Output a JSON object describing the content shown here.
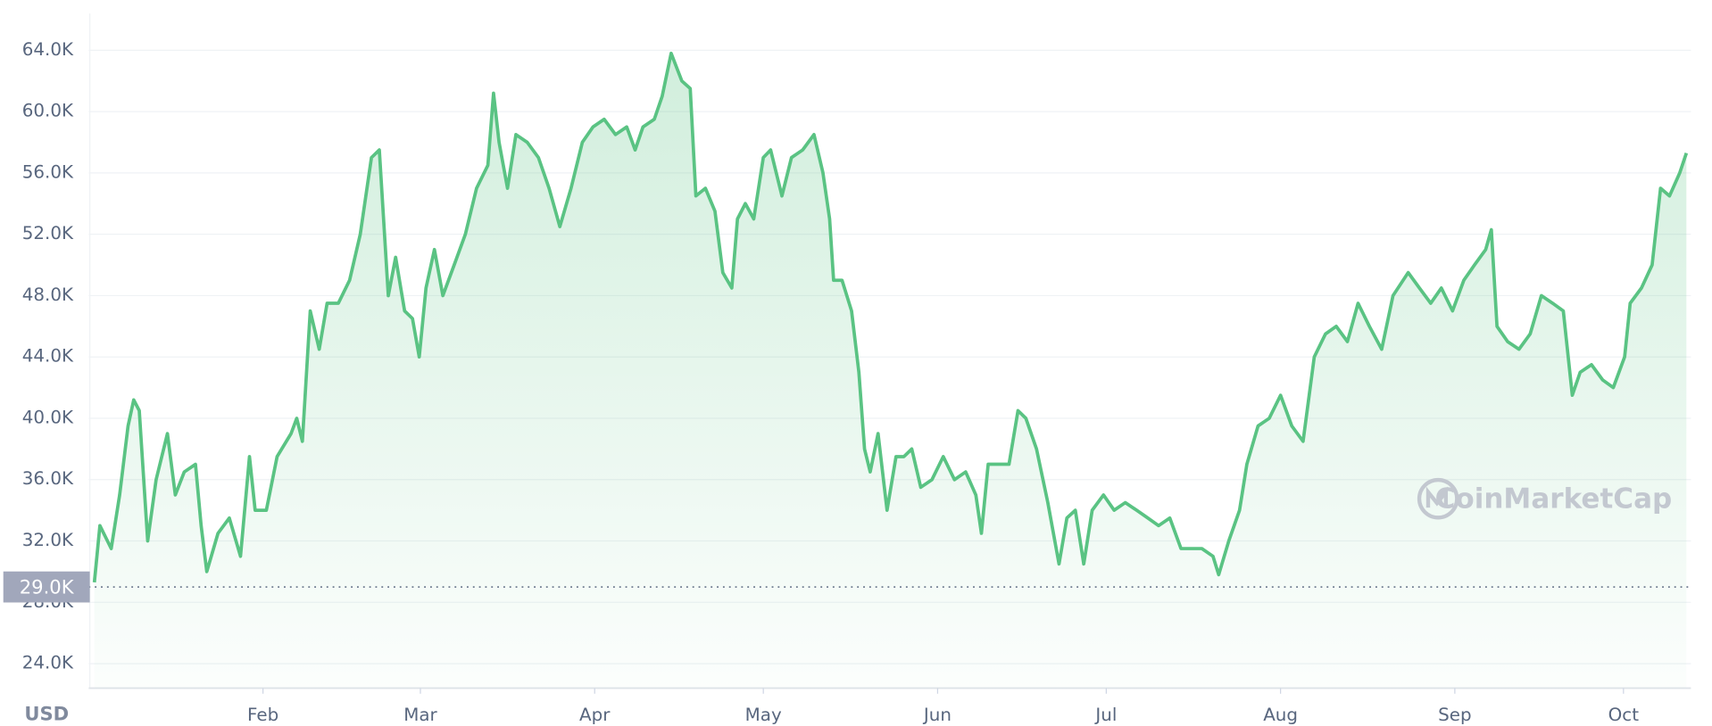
{
  "chart_data": {
    "type": "line",
    "axis_label": "USD",
    "watermark": "CoinMarketCap",
    "xlim": [
      0,
      285
    ],
    "xticks": [
      {
        "value": 31,
        "label": "Feb"
      },
      {
        "value": 59,
        "label": "Mar"
      },
      {
        "value": 90,
        "label": "Apr"
      },
      {
        "value": 120,
        "label": "May"
      },
      {
        "value": 151,
        "label": "Jun"
      },
      {
        "value": 181,
        "label": "Jul"
      },
      {
        "value": 212,
        "label": "Aug"
      },
      {
        "value": 243,
        "label": "Sep"
      },
      {
        "value": 273,
        "label": "Oct"
      }
    ],
    "ylim": [
      22400,
      66400
    ],
    "yticks": [
      {
        "value": 24000,
        "label": "24.0K"
      },
      {
        "value": 28000,
        "label": "28.0K"
      },
      {
        "value": 32000,
        "label": "32.0K"
      },
      {
        "value": 36000,
        "label": "36.0K"
      },
      {
        "value": 40000,
        "label": "40.0K"
      },
      {
        "value": 44000,
        "label": "44.0K"
      },
      {
        "value": 48000,
        "label": "48.0K"
      },
      {
        "value": 52000,
        "label": "52.0K"
      },
      {
        "value": 56000,
        "label": "56.0K"
      },
      {
        "value": 60000,
        "label": "60.0K"
      },
      {
        "value": 64000,
        "label": "64.0K"
      }
    ],
    "reference_line": {
      "value": 29000,
      "label": "29.0K"
    },
    "grid": true,
    "color": "#5ac383",
    "x": [
      1,
      2,
      4,
      5.5,
      7,
      8,
      9,
      10.5,
      12,
      14,
      15.4,
      17,
      19,
      20,
      21,
      23,
      25,
      27,
      28.6,
      29.6,
      31.6,
      33.5,
      36,
      37,
      38,
      39.4,
      41,
      42.4,
      44.4,
      46.4,
      48.3,
      50.3,
      51.7,
      53.3,
      54.6,
      56.2,
      57.6,
      58.8,
      60,
      61.5,
      63,
      65,
      67,
      69,
      71,
      72,
      73,
      74.5,
      76,
      78,
      80,
      81.9,
      83.8,
      85.8,
      87.8,
      89.7,
      91.7,
      93.7,
      95.7,
      97.2,
      98.6,
      100.6,
      102,
      103.6,
      105.5,
      107,
      108,
      109.7,
      111.4,
      112.8,
      114.4,
      115.4,
      116.8,
      118.3,
      120,
      121.3,
      123.3,
      125,
      127,
      129,
      130.6,
      131.8,
      132.5,
      134,
      135.7,
      137,
      138,
      139,
      140.4,
      142,
      143.6,
      145,
      146.4,
      148,
      150,
      152,
      154,
      156,
      157.8,
      158.8,
      160,
      162,
      163.7,
      165.3,
      166.7,
      168.6,
      170.6,
      172.6,
      174,
      175.5,
      177,
      178.5,
      180.5,
      182.4,
      184.4,
      186.4,
      188.4,
      190.3,
      192.3,
      194.3,
      196.3,
      198,
      200,
      201,
      202.8,
      204.7,
      206,
      208,
      210,
      212,
      214,
      216,
      218,
      220,
      221.9,
      223.9,
      225.8,
      227.8,
      230,
      232,
      234.7,
      236.7,
      238.7,
      240.6,
      242.6,
      244.6,
      246.5,
      248.5,
      249.5,
      250.5,
      252.4,
      254.4,
      256.4,
      258.4,
      260.4,
      262.3,
      263.9,
      265.3,
      267.3,
      269.3,
      271.2,
      273.2,
      274.2,
      276.2,
      278.1,
      279.6,
      281.2,
      283,
      284.2
    ],
    "values": [
      29300,
      33000,
      31500,
      35000,
      39500,
      41200,
      40500,
      32000,
      36000,
      39000,
      35000,
      36500,
      37000,
      33000,
      30000,
      32500,
      33500,
      31000,
      37500,
      34000,
      34000,
      37500,
      39000,
      40000,
      38500,
      47000,
      44500,
      47500,
      47500,
      49000,
      52000,
      57000,
      57500,
      48000,
      50500,
      47000,
      46500,
      44000,
      48500,
      51000,
      48000,
      50000,
      52000,
      55000,
      56500,
      61200,
      58000,
      55000,
      58500,
      58000,
      57000,
      55000,
      52500,
      55000,
      58000,
      59000,
      59500,
      58500,
      59000,
      57500,
      59000,
      59500,
      61000,
      63800,
      62000,
      61500,
      54500,
      55000,
      53500,
      49500,
      48500,
      53000,
      54000,
      53000,
      57000,
      57500,
      54500,
      57000,
      57500,
      58500,
      56000,
      53000,
      49000,
      49000,
      47000,
      43000,
      38000,
      36500,
      39000,
      34000,
      37500,
      37500,
      38000,
      35500,
      36000,
      37500,
      36000,
      36500,
      35000,
      32500,
      37000,
      37000,
      37000,
      40500,
      40000,
      38000,
      34500,
      30500,
      33500,
      34000,
      30500,
      34000,
      35000,
      34000,
      34500,
      34000,
      33500,
      33000,
      33500,
      31500,
      31500,
      31500,
      31000,
      29800,
      32000,
      34000,
      37000,
      39500,
      40000,
      41500,
      39500,
      38500,
      44000,
      45500,
      46000,
      45000,
      47500,
      46000,
      44500,
      48000,
      49500,
      48500,
      47500,
      48500,
      47000,
      49000,
      50000,
      51000,
      52300,
      46000,
      45000,
      44500,
      45500,
      48000,
      47500,
      47000,
      41500,
      43000,
      43500,
      42500,
      42000,
      44000,
      47500,
      48500,
      50000,
      55000,
      54500,
      56000,
      57300
    ]
  }
}
